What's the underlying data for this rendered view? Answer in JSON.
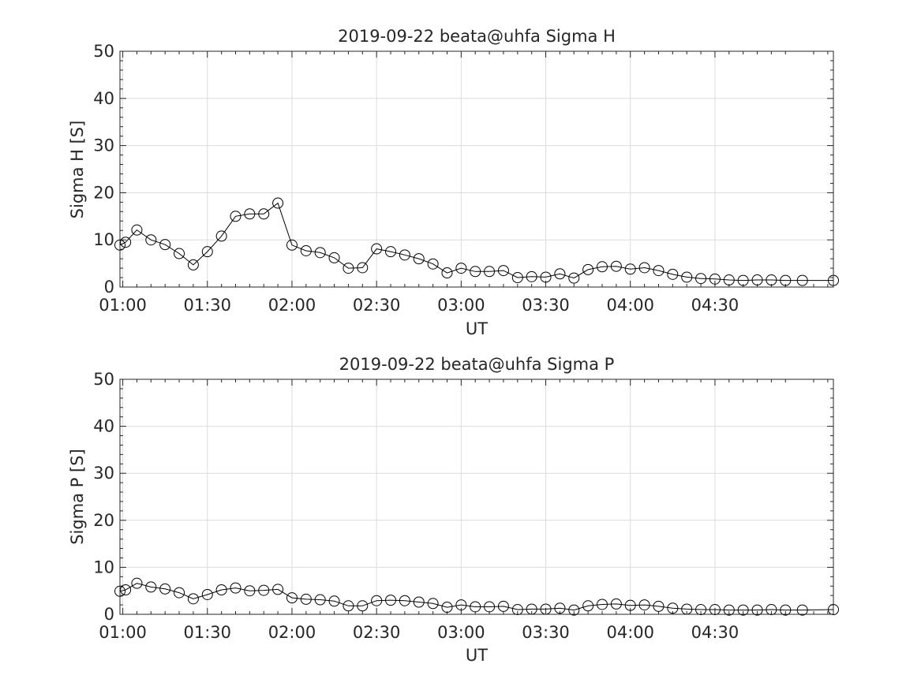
{
  "chart_data": [
    {
      "type": "line",
      "title": "2019-09-22  beata@uhfa Sigma H",
      "xlabel": "UT",
      "ylabel": "Sigma H [S]",
      "xlim": [
        "00:59",
        "05:12"
      ],
      "ylim": [
        0,
        50
      ],
      "yticks": [
        0,
        10,
        20,
        30,
        40,
        50
      ],
      "xtick_labels": [
        "01:00",
        "01:30",
        "02:00",
        "02:30",
        "03:00",
        "03:30",
        "04:00",
        "04:30"
      ],
      "grid": true,
      "marker": "circle",
      "x": [
        "00:59",
        "01:01",
        "01:05",
        "01:10",
        "01:15",
        "01:20",
        "01:25",
        "01:30",
        "01:35",
        "01:40",
        "01:45",
        "01:50",
        "01:55",
        "02:00",
        "02:05",
        "02:10",
        "02:15",
        "02:20",
        "02:25",
        "02:30",
        "02:35",
        "02:40",
        "02:45",
        "02:50",
        "02:55",
        "03:00",
        "03:05",
        "03:10",
        "03:15",
        "03:20",
        "03:25",
        "03:30",
        "03:35",
        "03:40",
        "03:45",
        "03:50",
        "03:55",
        "04:00",
        "04:05",
        "04:10",
        "04:15",
        "04:20",
        "04:25",
        "04:30",
        "04:35",
        "04:40",
        "04:45",
        "04:50",
        "04:55",
        "05:01",
        "05:12"
      ],
      "y": [
        8.9,
        9.5,
        12.1,
        10.0,
        9.0,
        7.1,
        4.7,
        7.5,
        10.8,
        15.0,
        15.5,
        15.5,
        17.8,
        8.9,
        7.7,
        7.3,
        6.2,
        4.0,
        4.1,
        8.1,
        7.5,
        6.8,
        6.0,
        4.9,
        3.0,
        4.0,
        3.3,
        3.3,
        3.5,
        2.0,
        2.2,
        2.1,
        2.8,
        1.9,
        3.7,
        4.3,
        4.4,
        3.8,
        4.1,
        3.5,
        2.7,
        2.1,
        1.8,
        1.7,
        1.5,
        1.4,
        1.5,
        1.5,
        1.4,
        1.4,
        1.4
      ]
    },
    {
      "type": "line",
      "title": "2019-09-22  beata@uhfa Sigma P",
      "xlabel": "UT",
      "ylabel": "Sigma P [S]",
      "xlim": [
        "00:59",
        "05:12"
      ],
      "ylim": [
        0,
        50
      ],
      "yticks": [
        0,
        10,
        20,
        30,
        40,
        50
      ],
      "xtick_labels": [
        "01:00",
        "01:30",
        "02:00",
        "02:30",
        "03:00",
        "03:30",
        "04:00",
        "04:30"
      ],
      "grid": true,
      "marker": "circle",
      "x": [
        "00:59",
        "01:01",
        "01:05",
        "01:10",
        "01:15",
        "01:20",
        "01:25",
        "01:30",
        "01:35",
        "01:40",
        "01:45",
        "01:50",
        "01:55",
        "02:00",
        "02:05",
        "02:10",
        "02:15",
        "02:20",
        "02:25",
        "02:30",
        "02:35",
        "02:40",
        "02:45",
        "02:50",
        "02:55",
        "03:00",
        "03:05",
        "03:10",
        "03:15",
        "03:20",
        "03:25",
        "03:30",
        "03:35",
        "03:40",
        "03:45",
        "03:50",
        "03:55",
        "04:00",
        "04:05",
        "04:10",
        "04:15",
        "04:20",
        "04:25",
        "04:30",
        "04:35",
        "04:40",
        "04:45",
        "04:50",
        "04:55",
        "05:01",
        "05:12"
      ],
      "y": [
        4.9,
        5.2,
        6.6,
        5.8,
        5.4,
        4.6,
        3.3,
        4.2,
        5.2,
        5.6,
        5.0,
        5.1,
        5.3,
        3.5,
        3.2,
        3.1,
        2.8,
        1.8,
        1.8,
        2.9,
        3.0,
        2.9,
        2.6,
        2.3,
        1.5,
        2.0,
        1.6,
        1.6,
        1.7,
        1.0,
        1.1,
        1.1,
        1.3,
        0.9,
        1.8,
        2.1,
        2.2,
        1.9,
        2.0,
        1.7,
        1.3,
        1.1,
        1.0,
        1.0,
        0.9,
        0.9,
        0.9,
        1.0,
        0.9,
        0.9,
        1.0
      ]
    }
  ]
}
